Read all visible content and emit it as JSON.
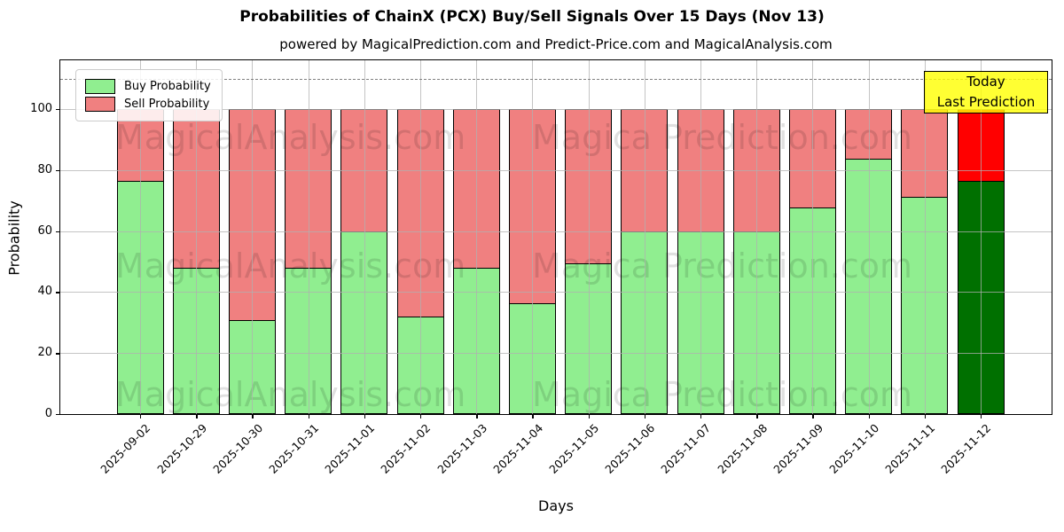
{
  "title": "Probabilities of ChainX (PCX) Buy/Sell Signals Over 15 Days (Nov 13)",
  "subtitle": "powered by MagicalPrediction.com and Predict-Price.com and MagicalAnalysis.com",
  "axes": {
    "x_label": "Days",
    "y_label": "Probability",
    "y_ticks": [
      0,
      20,
      40,
      60,
      80,
      100
    ],
    "y_max": 116,
    "grid": true
  },
  "legend": {
    "position": "upper-left",
    "items": [
      {
        "label": "Buy Probability",
        "color": "#90ee90"
      },
      {
        "label": "Sell Probability",
        "color": "#f08080"
      }
    ]
  },
  "annotation": {
    "lines": [
      "Today",
      "Last Prediction"
    ],
    "bg_color": "#ffff00",
    "border_color": "#000000"
  },
  "watermarks": {
    "left_text": "MagicalAnalysis.com",
    "right_text": "Magica Prediction.com"
  },
  "hline": {
    "y": 110,
    "style": "dashed",
    "color": "#7f7f7f"
  },
  "colors": {
    "buy": "#90ee90",
    "sell": "#f08080",
    "today_buy": "#007000",
    "today_sell": "#ff0000",
    "bar_edge": "#000000"
  },
  "chart_data": {
    "type": "bar",
    "stacked": true,
    "title": "Probabilities of ChainX (PCX) Buy/Sell Signals Over 15 Days (Nov 13)",
    "xlabel": "Days",
    "ylabel": "Probability",
    "ylim": [
      0,
      116
    ],
    "categories": [
      "2025-09-02",
      "2025-10-29",
      "2025-10-30",
      "2025-10-31",
      "2025-11-01",
      "2025-11-02",
      "2025-11-03",
      "2025-11-04",
      "2025-11-05",
      "2025-11-06",
      "2025-11-07",
      "2025-11-08",
      "2025-11-09",
      "2025-11-10",
      "2025-11-11",
      "2025-11-12"
    ],
    "series": [
      {
        "name": "Buy Probability",
        "color": "#90ee90",
        "values": [
          76.5,
          48,
          31,
          48,
          60,
          32,
          48,
          36.5,
          49.5,
          60,
          60,
          60,
          68,
          84,
          71.5,
          76.5
        ]
      },
      {
        "name": "Sell Probability",
        "color": "#f08080",
        "values": [
          23.5,
          52,
          69,
          52,
          40,
          68,
          52,
          63.5,
          50.5,
          40,
          40,
          40,
          32,
          16,
          28.5,
          23.5
        ]
      }
    ],
    "highlight_last_bar": {
      "label": "Today Last Prediction",
      "buy_color": "#007000",
      "sell_color": "#ff0000"
    },
    "threshold_line": 110,
    "legend_position": "upper-left",
    "grid": true
  }
}
